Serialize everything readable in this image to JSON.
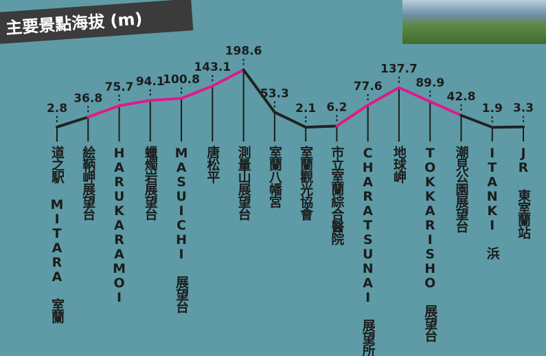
{
  "chart_data": {
    "type": "line",
    "title": "主要景點海拔 (m)",
    "categories": [
      "道之駅 MITARA 室蘭",
      "絵鞆岬展望台",
      "HARUKARAMOI",
      "蠟燭岩展望台",
      "MASUICHI 展望台",
      "唐松平",
      "測量山展望台",
      "室蘭八幡宮",
      "室蘭觀光協會",
      "市立室蘭綜合醫院",
      "CHARATSUNAI 展望所",
      "地球岬",
      "TOKKARISHO 展望台",
      "潮見公園展望台",
      "ITANKI 浜",
      "JR 東室蘭站"
    ],
    "values": [
      2.8,
      36.8,
      75.7,
      94.1,
      100.8,
      143.1,
      198.6,
      53.3,
      2.1,
      6.2,
      77.6,
      137.7,
      89.9,
      42.8,
      1.9,
      3.3
    ],
    "segment_colors": [
      "#222222",
      "#e0198a",
      "#e0198a",
      "#e0198a",
      "#e0198a",
      "#e0198a",
      "#222222",
      "#222222",
      "#222222",
      "#e0198a",
      "#e0198a",
      "#e0198a",
      "#e0198a",
      "#222222",
      "#222222"
    ],
    "ylim": [
      0,
      200
    ]
  }
}
